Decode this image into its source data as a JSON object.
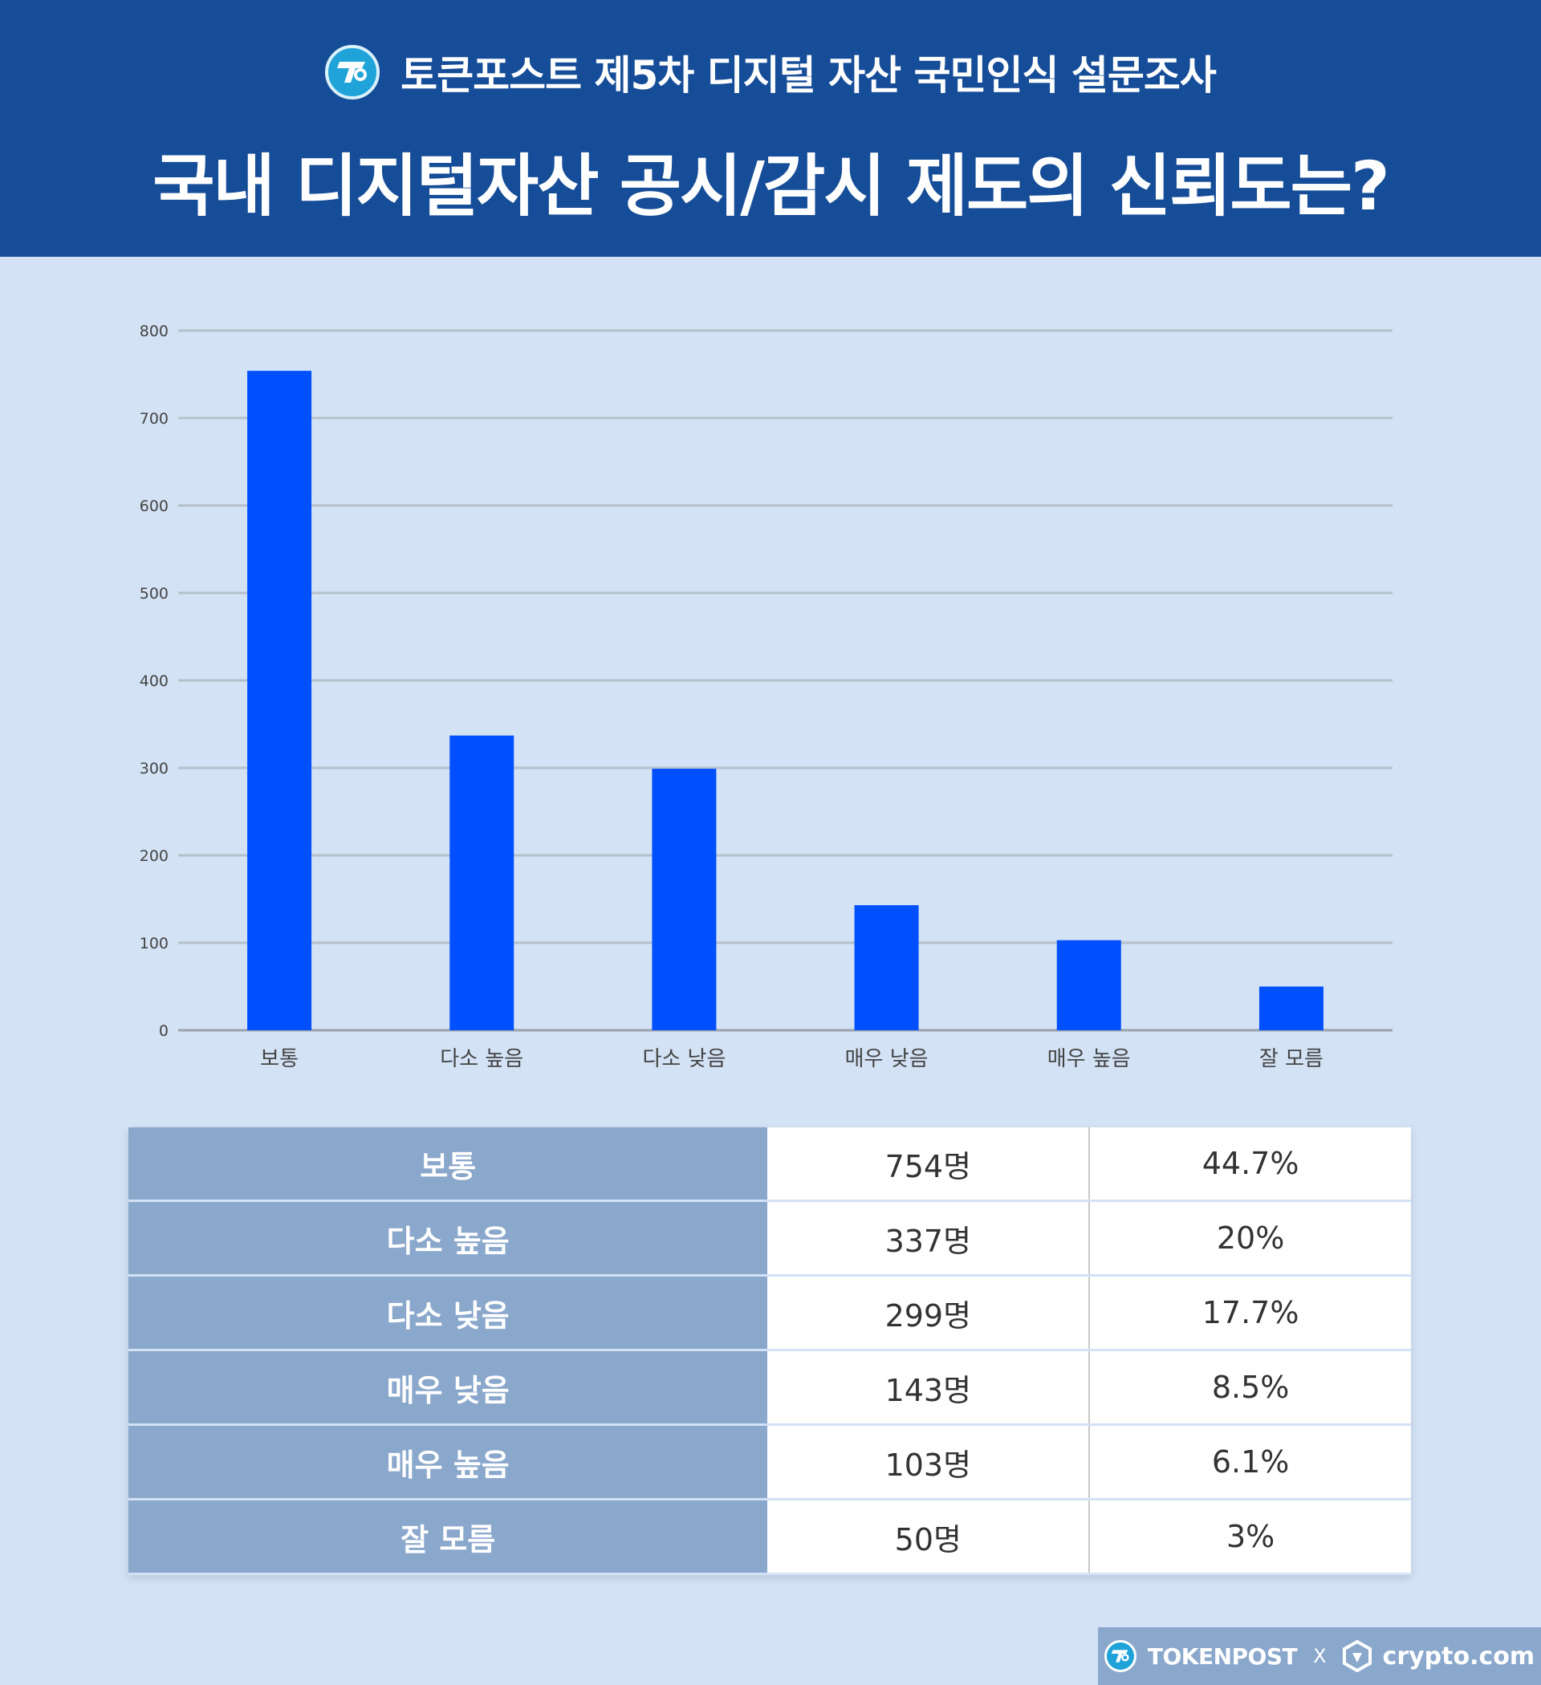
{
  "header": {
    "subtitle": "토큰포스트 제5차 디지털 자산 국민인식 설문조사",
    "title": "국내 디지털자산 공시/감시 제도의 신뢰도는?"
  },
  "chart_data": {
    "type": "bar",
    "categories": [
      "보통",
      "다소 높음",
      "다소 낮음",
      "매우 낮음",
      "매우 높음",
      "잘 모름"
    ],
    "values": [
      754,
      337,
      299,
      143,
      103,
      50
    ],
    "ylim": [
      0,
      800
    ],
    "yticks": [
      "0",
      "100",
      "200",
      "300",
      "400",
      "500",
      "600",
      "700",
      "800"
    ],
    "grid": true,
    "bar_color": "#0050ff"
  },
  "table": {
    "rows": [
      {
        "label": "보통",
        "count": "754명",
        "percent": "44.7%"
      },
      {
        "label": "다소 높음",
        "count": "337명",
        "percent": "20%"
      },
      {
        "label": "다소 낮음",
        "count": "299명",
        "percent": "17.7%"
      },
      {
        "label": "매우 낮음",
        "count": "143명",
        "percent": "8.5%"
      },
      {
        "label": "매우 높음",
        "count": "103명",
        "percent": "6.1%"
      },
      {
        "label": "잘 모름",
        "count": "50명",
        "percent": "3%"
      }
    ]
  },
  "footer": {
    "tokenpost": "TOKENPOST",
    "separator": "X",
    "crypto": "crypto.com"
  },
  "colors": {
    "header_bg": "#164d98",
    "page_bg": "#d3e2f5",
    "table_label_bg": "#8aa7cc"
  }
}
